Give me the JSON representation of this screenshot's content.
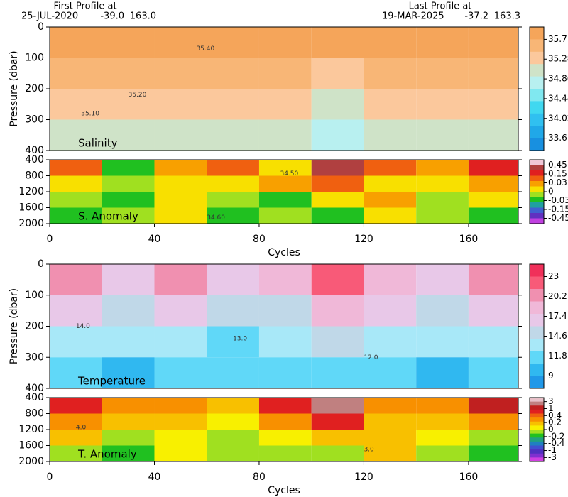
{
  "header": {
    "left_title": "First Profile at",
    "left_date": "25-JUL-2020",
    "left_lat": "-39.0",
    "left_lon": "163.0",
    "right_title": "Last Profile at",
    "right_date": "19-MAR-2025",
    "right_lat": "-37.2",
    "right_lon": "163.3"
  },
  "chart_data": [
    {
      "type": "heatmap",
      "label": "Salinity",
      "ylabel": "Pressure (dbar)",
      "xlim": [
        0,
        179
      ],
      "ylim": [
        0,
        400
      ],
      "y_inverted": true,
      "yticks": [
        0,
        100,
        200,
        300,
        400
      ],
      "x": [
        0,
        20,
        40,
        60,
        80,
        100,
        120,
        140,
        160,
        179
      ],
      "y": [
        0,
        100,
        200,
        300,
        400
      ],
      "values": [
        [
          35.6,
          35.6,
          35.7,
          35.6,
          35.6,
          35.6,
          35.6,
          35.6,
          35.6
        ],
        [
          35.3,
          35.4,
          35.4,
          35.4,
          35.3,
          35.2,
          35.3,
          35.4,
          35.3
        ],
        [
          35.1,
          35.2,
          35.2,
          35.2,
          35.1,
          34.9,
          35.1,
          35.1,
          35.1
        ],
        [
          34.9,
          35.0,
          35.0,
          35.0,
          34.9,
          34.7,
          34.9,
          34.9,
          34.9
        ]
      ],
      "annotations": [
        {
          "text": "35.40",
          "x": 56,
          "y": 70
        },
        {
          "text": "35.20",
          "x": 30,
          "y": 220
        },
        {
          "text": "35.10",
          "x": 12,
          "y": 280
        }
      ],
      "colorbar": {
        "ticks": [
          35.7,
          35.28,
          34.86,
          34.44,
          34.02,
          33.6
        ],
        "colors": [
          "#f5a55a",
          "#f8b676",
          "#fbc89c",
          "#cfe3c8",
          "#b8f0f0",
          "#80e8f0",
          "#40d8f0",
          "#30c0f0",
          "#20a8e8",
          "#1890e0"
        ]
      }
    },
    {
      "type": "heatmap",
      "label": "S. Anomaly",
      "xlabel": "Cycles",
      "xlim": [
        0,
        179
      ],
      "xticks": [
        0,
        40,
        80,
        120,
        160
      ],
      "ylim": [
        400,
        2000
      ],
      "y_inverted": true,
      "yticks": [
        400,
        800,
        1200,
        1600,
        2000
      ],
      "x": [
        0,
        20,
        40,
        60,
        80,
        100,
        120,
        140,
        160,
        179
      ],
      "y": [
        400,
        800,
        1200,
        1600,
        2000
      ],
      "values": [
        [
          0.05,
          -0.02,
          0.02,
          0.03,
          0.0,
          0.2,
          0.05,
          0.02,
          0.1
        ],
        [
          0.01,
          -0.01,
          0.0,
          0.01,
          0.02,
          0.04,
          0.0,
          0.01,
          0.02
        ],
        [
          -0.01,
          -0.02,
          0.0,
          -0.01,
          -0.02,
          0.01,
          0.02,
          -0.01,
          0.0
        ],
        [
          -0.02,
          -0.01,
          0.01,
          -0.02,
          -0.01,
          -0.02,
          0.01,
          -0.01,
          -0.02
        ]
      ],
      "annotations": [
        {
          "text": "34.60",
          "x": 60,
          "y": 1850
        },
        {
          "text": "34.50",
          "x": 88,
          "y": 750
        }
      ],
      "colorbar": {
        "ticks": [
          0.45,
          0.15,
          0.03,
          0,
          -0.03,
          -0.15,
          -0.45
        ],
        "colors": [
          "#f0c8d8",
          "#b04040",
          "#e02020",
          "#f06010",
          "#f8a000",
          "#f8e000",
          "#a0e020",
          "#20c020",
          "#20a0a0",
          "#4060d0",
          "#6030c0",
          "#c040e0"
        ]
      }
    },
    {
      "type": "heatmap",
      "label": "Temperature",
      "ylabel": "Pressure (dbar)",
      "xlim": [
        0,
        179
      ],
      "ylim": [
        0,
        400
      ],
      "y_inverted": true,
      "yticks": [
        0,
        100,
        200,
        300,
        400
      ],
      "x": [
        0,
        20,
        40,
        60,
        80,
        100,
        120,
        140,
        160,
        179
      ],
      "y": [
        0,
        100,
        200,
        300,
        400
      ],
      "values": [
        [
          19,
          17,
          20,
          16,
          18,
          21,
          18,
          17,
          19
        ],
        [
          16,
          15,
          16,
          15,
          15,
          18,
          16,
          15,
          16
        ],
        [
          14,
          13.5,
          14,
          13,
          13.5,
          15,
          14,
          13.5,
          14
        ],
        [
          12,
          11.5,
          12,
          11.8,
          12,
          13,
          12,
          11.5,
          12
        ]
      ],
      "annotations": [
        {
          "text": "14.0",
          "x": 10,
          "y": 200
        },
        {
          "text": "13.0",
          "x": 70,
          "y": 240
        },
        {
          "text": "12.0",
          "x": 120,
          "y": 300
        }
      ],
      "colorbar": {
        "ticks": [
          23,
          20.2,
          17.4,
          14.6,
          11.8,
          9
        ],
        "colors": [
          "#f0305a",
          "#f85a78",
          "#f090b0",
          "#f0b8d8",
          "#e8c8e8",
          "#c0d8e8",
          "#a8e8f8",
          "#60d8f8",
          "#30b8f0",
          "#2098e8"
        ]
      }
    },
    {
      "type": "heatmap",
      "label": "T. Anomaly",
      "xlabel": "Cycles",
      "xlim": [
        0,
        179
      ],
      "xticks": [
        0,
        40,
        80,
        120,
        160
      ],
      "ylim": [
        400,
        2000
      ],
      "y_inverted": true,
      "yticks": [
        400,
        800,
        1200,
        1600,
        2000
      ],
      "x": [
        0,
        20,
        40,
        60,
        80,
        100,
        120,
        140,
        160,
        179
      ],
      "y": [
        400,
        800,
        1200,
        1600,
        2000
      ],
      "values": [
        [
          0.5,
          0.2,
          0.3,
          0.1,
          0.4,
          1.2,
          0.3,
          0.2,
          0.8
        ],
        [
          0.3,
          0.1,
          0.1,
          0.05,
          0.2,
          0.5,
          0.1,
          0.1,
          0.3
        ],
        [
          0.1,
          -0.1,
          0.0,
          -0.1,
          0.0,
          0.15,
          0.1,
          0.0,
          -0.05
        ],
        [
          -0.1,
          -0.15,
          0.05,
          -0.1,
          -0.1,
          -0.1,
          0.1,
          -0.1,
          -0.2
        ]
      ],
      "annotations": [
        {
          "text": "4.0",
          "x": 10,
          "y": 1150
        },
        {
          "text": "3.0",
          "x": 120,
          "y": 1700
        }
      ],
      "colorbar": {
        "ticks": [
          3,
          1,
          0.4,
          0.2,
          0,
          -0.2,
          -0.4,
          -1,
          -3
        ],
        "colors": [
          "#e8c0c8",
          "#c08080",
          "#c02020",
          "#e02020",
          "#f06010",
          "#f89000",
          "#f8c000",
          "#f8f000",
          "#a0e020",
          "#20c020",
          "#20a080",
          "#2080c0",
          "#4050d0",
          "#5030c0",
          "#8030d0",
          "#d040e0"
        ]
      }
    }
  ]
}
